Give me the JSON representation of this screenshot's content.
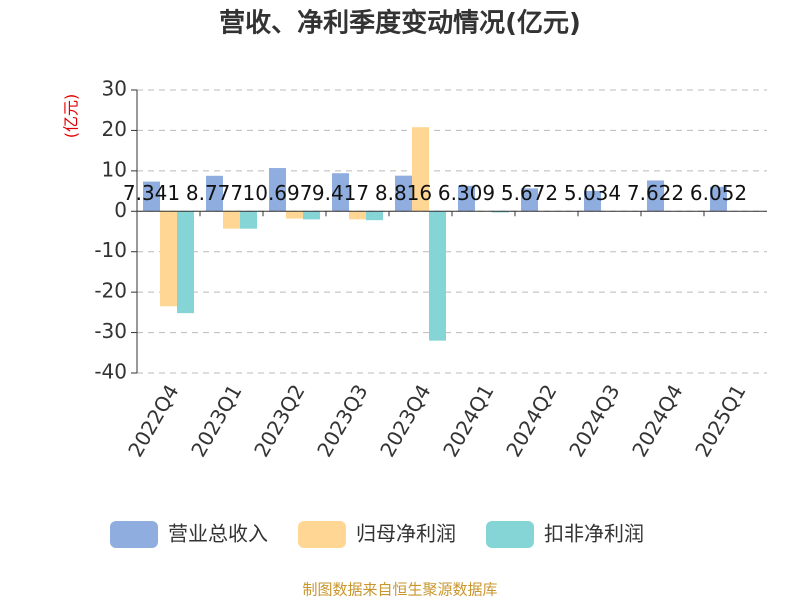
{
  "chart_data": {
    "type": "bar",
    "title": "营收、净利季度变动情况(亿元)",
    "y_label": "(亿元)",
    "categories": [
      "2022Q4",
      "2023Q1",
      "2023Q2",
      "2023Q3",
      "2023Q4",
      "2024Q1",
      "2024Q2",
      "2024Q3",
      "2024Q4",
      "2025Q1"
    ],
    "series": [
      {
        "name": "营业总收入",
        "color": "#8fadde",
        "values": [
          7.341,
          8.777,
          10.697,
          9.417,
          8.816,
          6.309,
          5.672,
          5.034,
          7.622,
          6.052
        ],
        "show_labels": true
      },
      {
        "name": "归母净利润",
        "color": "#ffd693",
        "values": [
          -23.5,
          -4.3,
          -1.8,
          -2.0,
          20.8,
          null,
          null,
          null,
          null,
          null
        ],
        "show_labels": false
      },
      {
        "name": "扣非净利润",
        "color": "#85d5d7",
        "values": [
          -25.2,
          -4.3,
          -2.0,
          -2.2,
          -32.0,
          -0.3,
          null,
          null,
          null,
          null
        ],
        "show_labels": false
      }
    ],
    "ylim": [
      -40,
      30
    ],
    "yticks": [
      -40,
      -30,
      -20,
      -10,
      0,
      10,
      20,
      30
    ],
    "grid": true,
    "legend": "bottom",
    "source": "制图数据来自恒生聚源数据库"
  }
}
